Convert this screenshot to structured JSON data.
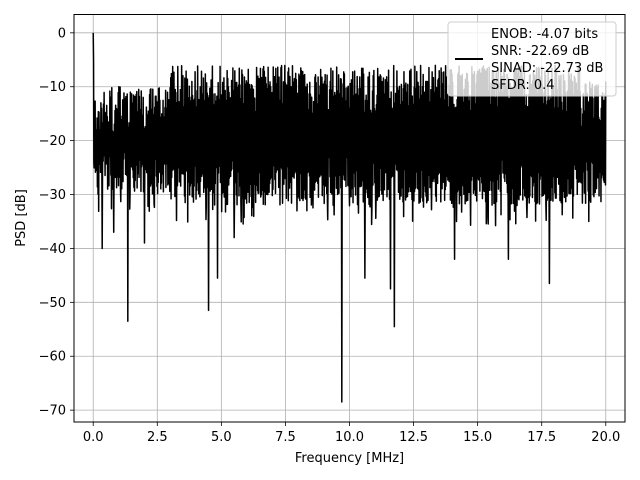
{
  "chart_data": {
    "type": "line",
    "title": "",
    "xlabel": "Frequency [MHz]",
    "ylabel": "PSD [dB]",
    "xlim": [
      -0.75,
      20.75
    ],
    "ylim": [
      -72.2,
      3.4
    ],
    "xticks": [
      0.0,
      2.5,
      5.0,
      7.5,
      10.0,
      12.5,
      15.0,
      17.5,
      20.0
    ],
    "xtick_labels": [
      "0.0",
      "2.5",
      "5.0",
      "7.5",
      "10.0",
      "12.5",
      "15.0",
      "17.5",
      "20.0"
    ],
    "yticks": [
      0,
      -10,
      -20,
      -30,
      -40,
      -50,
      -60,
      -70
    ],
    "ytick_labels": [
      "0",
      "−10",
      "−20",
      "−30",
      "−40",
      "−50",
      "−60",
      "−70"
    ],
    "grid": true,
    "legend_position": "top-right",
    "series": [
      {
        "name": "ENOB: -4.07 bits\nSNR: -22.69 dB\nSINAD: -22.73 dB\nSFDR: 0.4",
        "color": "#000000",
        "x_range": [
          0.0,
          20.0
        ],
        "noise_floor_range_db": [
          -32,
          -6
        ],
        "peak": {
          "x": 0.0,
          "y": 0.0
        },
        "notable_dips": [
          {
            "x": 0.35,
            "y": -40
          },
          {
            "x": 0.8,
            "y": -37
          },
          {
            "x": 1.35,
            "y": -53.5
          },
          {
            "x": 2.0,
            "y": -39
          },
          {
            "x": 4.5,
            "y": -51.5
          },
          {
            "x": 4.85,
            "y": -45.5
          },
          {
            "x": 5.5,
            "y": -38
          },
          {
            "x": 9.7,
            "y": -68.5
          },
          {
            "x": 10.6,
            "y": -45.5
          },
          {
            "x": 11.6,
            "y": -47.5
          },
          {
            "x": 11.75,
            "y": -54.5
          },
          {
            "x": 14.1,
            "y": -42
          },
          {
            "x": 16.2,
            "y": -42
          },
          {
            "x": 17.8,
            "y": -46.5
          }
        ]
      }
    ]
  }
}
